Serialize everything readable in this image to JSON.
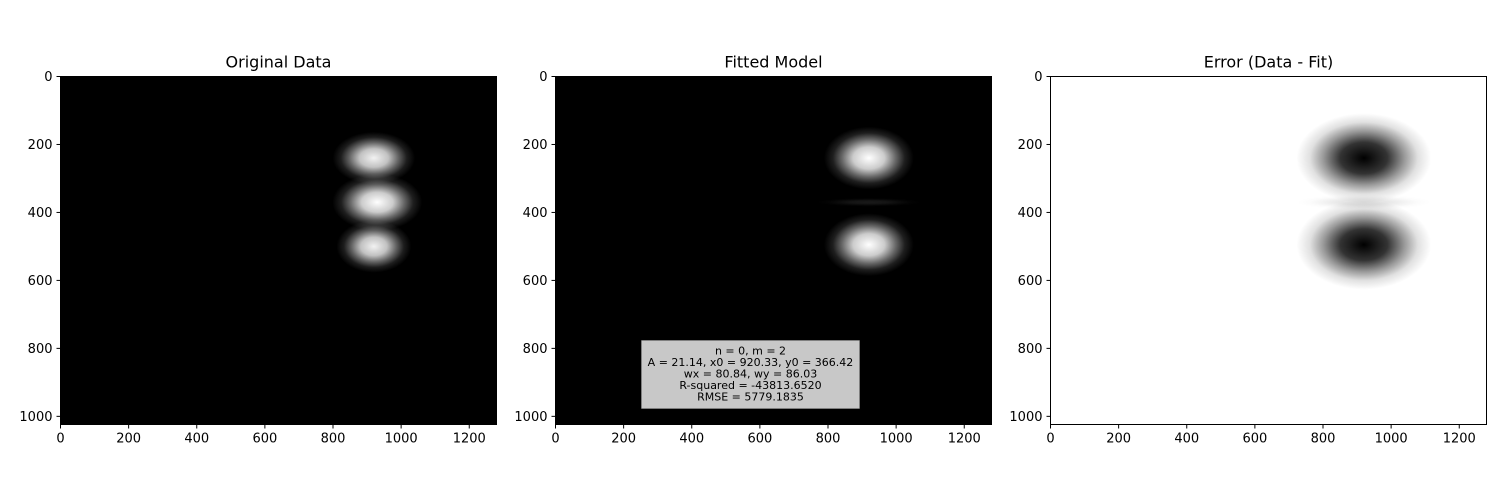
{
  "chart_data": [
    {
      "type": "heatmap",
      "title": "Original Data",
      "colormap": "gray",
      "background": "#000000",
      "x_range": [
        0,
        1280
      ],
      "y_range": [
        0,
        1024
      ],
      "xticks": [
        0,
        200,
        400,
        600,
        800,
        1000,
        1200
      ],
      "yticks": [
        0,
        200,
        400,
        600,
        800,
        1000
      ],
      "spots": [
        {
          "x": 920,
          "y": 240,
          "sx": 55,
          "sy": 35,
          "amp": 0.95
        },
        {
          "x": 930,
          "y": 370,
          "sx": 60,
          "sy": 38,
          "amp": 1.0
        },
        {
          "x": 920,
          "y": 500,
          "sx": 50,
          "sy": 35,
          "amp": 0.95
        }
      ]
    },
    {
      "type": "heatmap",
      "title": "Fitted Model",
      "colormap": "gray",
      "background": "#000000",
      "x_range": [
        0,
        1280
      ],
      "y_range": [
        0,
        1024
      ],
      "xticks": [
        0,
        200,
        400,
        600,
        800,
        1000,
        1200
      ],
      "yticks": [
        0,
        200,
        400,
        600,
        800,
        1000
      ],
      "spots": [
        {
          "x": 920,
          "y": 240,
          "sx": 60,
          "sy": 42,
          "amp": 1.0
        },
        {
          "x": 920,
          "y": 370,
          "sx": 70,
          "sy": 6,
          "amp": 0.1
        },
        {
          "x": 920,
          "y": 495,
          "sx": 60,
          "sy": 42,
          "amp": 1.0
        }
      ],
      "annotation": {
        "lines": [
          "n = 0, m = 2",
          "A = 21.14, x0 = 920.33, y0 = 366.42",
          "wx = 80.84, wy = 86.03",
          "R-squared = -43813.6520",
          "RMSE = 5779.1835"
        ],
        "box_color": "#c8c8c8"
      }
    },
    {
      "type": "heatmap",
      "title": "Error (Data - Fit)",
      "colormap": "gray",
      "background": "#ffffff",
      "x_range": [
        0,
        1280
      ],
      "y_range": [
        0,
        1024
      ],
      "xticks": [
        0,
        200,
        400,
        600,
        800,
        1000,
        1200
      ],
      "yticks": [
        0,
        200,
        400,
        600,
        800,
        1000
      ],
      "spots": [
        {
          "x": 920,
          "y": 240,
          "sx": 90,
          "sy": 60,
          "amp": 1.0
        },
        {
          "x": 920,
          "y": 370,
          "sx": 90,
          "sy": 10,
          "amp": 0.12
        },
        {
          "x": 920,
          "y": 495,
          "sx": 90,
          "sy": 60,
          "amp": 1.0
        }
      ]
    }
  ]
}
